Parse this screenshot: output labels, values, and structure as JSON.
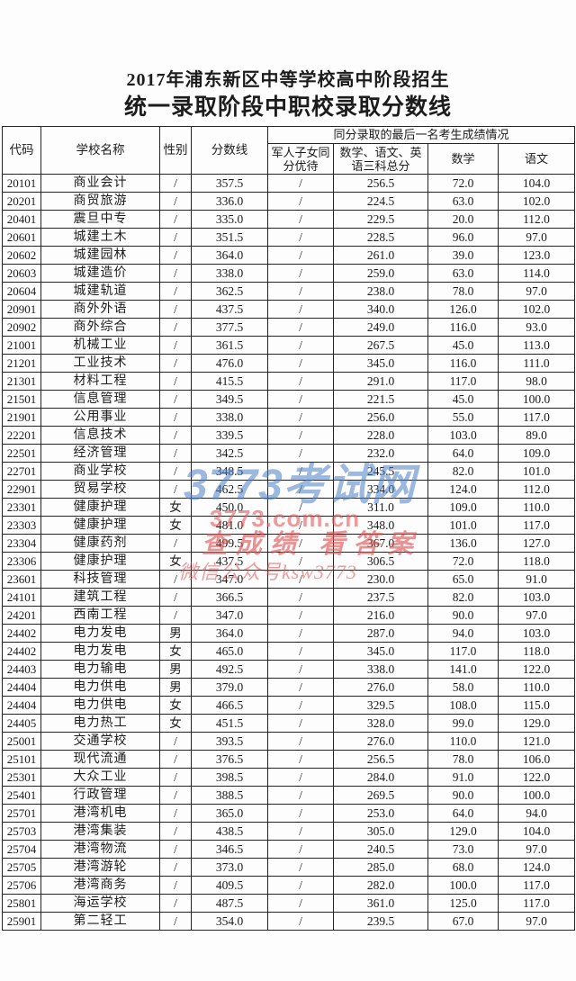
{
  "titles": {
    "line1": "2017年浦东新区中等学校高中阶段招生",
    "line2": "统一录取阶段中职校录取分数线"
  },
  "table": {
    "headers": {
      "code": "代码",
      "school": "学校名称",
      "gender": "性别",
      "score_line": "分数线",
      "group": "同分录取的最后一名考生成绩情况",
      "military": "军人子女同分优待",
      "three_subjects": "数学、语文、英语三科总分",
      "math": "数学",
      "chinese": "语文"
    },
    "col_keys": [
      "code",
      "school",
      "gender",
      "score-line",
      "military-preference",
      "three-subject-total",
      "math",
      "chinese"
    ],
    "rows": [
      [
        "20101",
        "商业会计",
        "/",
        "357.5",
        "/",
        "256.5",
        "72.0",
        "104.0"
      ],
      [
        "20201",
        "商贸旅游",
        "/",
        "336.0",
        "/",
        "224.5",
        "63.0",
        "102.0"
      ],
      [
        "20401",
        "震旦中专",
        "/",
        "335.0",
        "/",
        "229.5",
        "20.0",
        "112.0"
      ],
      [
        "20601",
        "城建土木",
        "/",
        "351.5",
        "/",
        "228.5",
        "96.0",
        "97.0"
      ],
      [
        "20602",
        "城建园林",
        "/",
        "364.0",
        "/",
        "261.0",
        "39.0",
        "123.0"
      ],
      [
        "20603",
        "城建造价",
        "/",
        "338.0",
        "/",
        "259.0",
        "63.0",
        "114.0"
      ],
      [
        "20604",
        "城建轨道",
        "/",
        "362.5",
        "/",
        "238.0",
        "78.0",
        "97.0"
      ],
      [
        "20901",
        "商外外语",
        "/",
        "437.5",
        "/",
        "340.0",
        "126.0",
        "102.0"
      ],
      [
        "20902",
        "商外综合",
        "/",
        "377.5",
        "/",
        "249.0",
        "116.0",
        "93.0"
      ],
      [
        "21001",
        "机械工业",
        "/",
        "361.5",
        "/",
        "267.5",
        "45.0",
        "113.0"
      ],
      [
        "21201",
        "工业技术",
        "/",
        "476.0",
        "/",
        "345.0",
        "116.0",
        "111.0"
      ],
      [
        "21301",
        "材料工程",
        "/",
        "415.5",
        "/",
        "291.0",
        "117.0",
        "98.0"
      ],
      [
        "21501",
        "信息管理",
        "/",
        "349.5",
        "/",
        "221.5",
        "45.0",
        "100.0"
      ],
      [
        "21901",
        "公用事业",
        "/",
        "338.0",
        "/",
        "256.0",
        "55.0",
        "117.0"
      ],
      [
        "22201",
        "信息技术",
        "/",
        "339.5",
        "/",
        "228.0",
        "103.0",
        "89.0"
      ],
      [
        "22501",
        "经济管理",
        "/",
        "342.5",
        "/",
        "232.0",
        "64.0",
        "109.0"
      ],
      [
        "22701",
        "商业学校",
        "/",
        "348.5",
        "/",
        "245.5",
        "82.0",
        "101.0"
      ],
      [
        "22901",
        "贸易学校",
        "/",
        "462.5",
        "/",
        "334.0",
        "124.0",
        "112.0"
      ],
      [
        "23301",
        "健康护理",
        "女",
        "450.0",
        "/",
        "311.0",
        "109.0",
        "110.0"
      ],
      [
        "23303",
        "健康护理",
        "女",
        "481.0",
        "/",
        "348.0",
        "101.0",
        "117.0"
      ],
      [
        "23304",
        "健康药剂",
        "/",
        "499.5",
        "/",
        "367.0",
        "136.0",
        "127.0"
      ],
      [
        "23306",
        "健康护理",
        "女",
        "437.5",
        "/",
        "306.5",
        "72.0",
        "118.0"
      ],
      [
        "23601",
        "科技管理",
        "/",
        "347.0",
        "/",
        "230.0",
        "65.0",
        "91.0"
      ],
      [
        "24101",
        "建筑工程",
        "/",
        "366.5",
        "/",
        "237.5",
        "82.0",
        "103.0"
      ],
      [
        "24201",
        "西南工程",
        "/",
        "347.0",
        "/",
        "216.0",
        "90.0",
        "97.0"
      ],
      [
        "24402",
        "电力发电",
        "男",
        "364.0",
        "/",
        "287.0",
        "94.0",
        "103.0"
      ],
      [
        "24402",
        "电力发电",
        "女",
        "465.0",
        "/",
        "345.0",
        "117.0",
        "118.0"
      ],
      [
        "24403",
        "电力输电",
        "男",
        "492.5",
        "/",
        "338.0",
        "141.0",
        "122.0"
      ],
      [
        "24404",
        "电力供电",
        "男",
        "379.0",
        "/",
        "276.0",
        "58.0",
        "110.0"
      ],
      [
        "24404",
        "电力供电",
        "女",
        "466.5",
        "/",
        "329.5",
        "108.0",
        "115.0"
      ],
      [
        "24405",
        "电力热工",
        "女",
        "451.5",
        "/",
        "328.0",
        "99.0",
        "129.0"
      ],
      [
        "25001",
        "交通学校",
        "/",
        "393.5",
        "/",
        "276.0",
        "110.0",
        "121.0"
      ],
      [
        "25101",
        "现代流通",
        "/",
        "376.5",
        "/",
        "256.5",
        "78.0",
        "106.0"
      ],
      [
        "25301",
        "大众工业",
        "/",
        "398.5",
        "/",
        "284.0",
        "91.0",
        "122.0"
      ],
      [
        "25401",
        "行政管理",
        "/",
        "388.5",
        "/",
        "269.5",
        "90.0",
        "100.0"
      ],
      [
        "25701",
        "港湾机电",
        "/",
        "365.0",
        "/",
        "253.0",
        "64.0",
        "94.0"
      ],
      [
        "25703",
        "港湾集装",
        "/",
        "438.5",
        "/",
        "305.0",
        "129.0",
        "104.0"
      ],
      [
        "25704",
        "港湾物流",
        "/",
        "346.5",
        "/",
        "240.5",
        "73.0",
        "97.0"
      ],
      [
        "25705",
        "港湾游轮",
        "/",
        "373.0",
        "/",
        "285.0",
        "68.0",
        "124.0"
      ],
      [
        "25706",
        "港湾商务",
        "/",
        "409.5",
        "/",
        "282.0",
        "100.0",
        "117.0"
      ],
      [
        "25801",
        "海运学校",
        "/",
        "487.5",
        "/",
        "361.0",
        "125.0",
        "117.0"
      ],
      [
        "25901",
        "第二轻工",
        "/",
        "354.0",
        "/",
        "239.5",
        "67.0",
        "97.0"
      ]
    ]
  },
  "watermarks": {
    "logo": "3773考试网",
    "domain": "3773.com.cn",
    "slogan": "查成绩 看答案",
    "wechat": "微信公众号ksw3773",
    "blue": "#4e80c6",
    "red": "#de5050"
  }
}
